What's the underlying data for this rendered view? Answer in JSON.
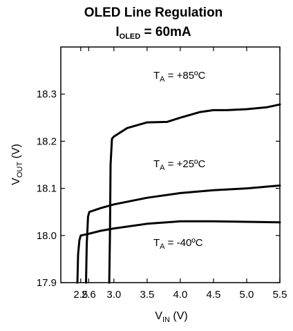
{
  "chart_data": {
    "type": "line",
    "title": "OLED Line Regulation",
    "subtitle": {
      "prefix": "I",
      "sub": "OLED",
      "suffix": " = 60mA"
    },
    "xlabel": {
      "prefix": "V",
      "sub": "IN",
      "suffix": " (V)"
    },
    "ylabel": {
      "prefix": "V",
      "sub": "OUT",
      "suffix": " (V)"
    },
    "xlim": [
      2.2,
      5.5
    ],
    "ylim": [
      17.9,
      18.4
    ],
    "x_ticks": [
      "2.5",
      "2.6",
      "3.0",
      "3.5",
      "4.0",
      "4.5",
      "5.0",
      "5.5"
    ],
    "x_tick_values": [
      2.5,
      2.62,
      3.0,
      3.5,
      4.0,
      4.5,
      5.0,
      5.5
    ],
    "y_ticks": [
      "17.9",
      "18.0",
      "18.1",
      "18.2",
      "18.3"
    ],
    "y_tick_values": [
      17.9,
      18.0,
      18.1,
      18.2,
      18.3
    ],
    "line_color": "#000000",
    "series": [
      {
        "name": "T_A = +85°C",
        "label": {
          "prefix": "T",
          "sub": "A",
          "suffix": " = +85ºC"
        },
        "x": [
          2.93,
          2.94,
          2.95,
          2.97,
          3.0,
          3.2,
          3.5,
          3.8,
          4.0,
          4.3,
          4.5,
          4.7,
          5.0,
          5.3,
          5.5
        ],
        "y": [
          17.9,
          18.0,
          18.15,
          18.205,
          18.21,
          18.228,
          18.24,
          18.241,
          18.25,
          18.262,
          18.266,
          18.266,
          18.268,
          18.272,
          18.278
        ]
      },
      {
        "name": "T_A = +25°C",
        "label": {
          "prefix": "T",
          "sub": "A",
          "suffix": " = +25ºC"
        },
        "x": [
          2.58,
          2.59,
          2.61,
          2.62,
          2.63,
          2.8,
          3.0,
          3.5,
          4.0,
          4.5,
          5.0,
          5.5
        ],
        "y": [
          17.9,
          17.98,
          18.04,
          18.045,
          18.05,
          18.058,
          18.066,
          18.08,
          18.09,
          18.096,
          18.1,
          18.106
        ]
      },
      {
        "name": "T_A = -40°C",
        "label": {
          "prefix": "T",
          "sub": "A",
          "suffix": " = -40ºC"
        },
        "x": [
          2.45,
          2.46,
          2.48,
          2.5,
          2.6,
          2.8,
          3.0,
          3.5,
          4.0,
          4.5,
          5.0,
          5.5
        ],
        "y": [
          17.9,
          17.96,
          17.99,
          18.0,
          18.003,
          18.01,
          18.015,
          18.025,
          18.03,
          18.03,
          18.029,
          18.028
        ]
      }
    ]
  }
}
